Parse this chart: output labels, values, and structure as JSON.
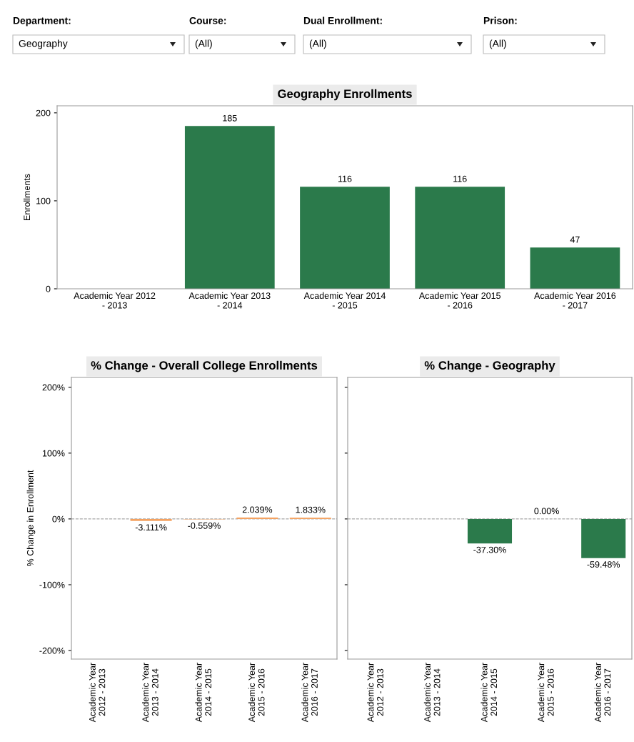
{
  "chart_data": [
    {
      "type": "bar",
      "title": "Geography Enrollments",
      "ylabel": "Enrollments",
      "annotations": [
        "Department:",
        "Geography",
        "Course:",
        "(All)",
        "Dual Enrollment:",
        "(All)",
        "Prison:",
        "(All)"
      ],
      "categories": [
        "Academic Year 2012 - 2013",
        "Academic Year 2013 - 2014",
        "Academic Year 2014 - 2015",
        "Academic Year 2015 - 2016",
        "Academic Year 2016 - 2017"
      ],
      "values": [
        null,
        185,
        116,
        116,
        47
      ],
      "color": "#2b7a4b",
      "data_labels": true,
      "ylim": [
        0,
        208
      ],
      "yticks": [
        0,
        100,
        200
      ],
      "grid": false
    },
    {
      "type": "bar",
      "title": "% Change - Overall College Enrollments",
      "ylabel": "% Change in Enrollment",
      "categories": [
        "Academic Year 2012 - 2013",
        "Academic Year 2013 - 2014",
        "Academic Year 2014 - 2015",
        "Academic Year 2015 - 2016",
        "Academic Year 2016 - 2017"
      ],
      "values": [
        null,
        -3.111,
        -0.559,
        2.039,
        1.833
      ],
      "color": "#f4a261",
      "value_labels": [
        null,
        "-3.111%",
        "-0.559%",
        "2.039%",
        "1.833%"
      ],
      "ylim": [
        -213,
        215
      ],
      "yticks": [
        {
          "value": -200,
          "label": "-200%"
        },
        {
          "value": -100,
          "label": "-100%"
        },
        {
          "value": 0,
          "label": "0%"
        },
        {
          "value": 100,
          "label": "100%"
        },
        {
          "value": 200,
          "label": "200%"
        }
      ],
      "ref_lines": [
        {
          "axis": "y",
          "value": 0,
          "color": "#aaaaaa",
          "line_style": "dashed"
        }
      ],
      "grid": false
    },
    {
      "type": "bar",
      "title": "% Change - Geography",
      "categories": [
        "Academic Year 2012 - 2013",
        "Academic Year 2013 - 2014",
        "Academic Year 2014 - 2015",
        "Academic Year 2015 - 2016",
        "Academic Year 2016 - 2017"
      ],
      "values": [
        null,
        null,
        -37.3,
        0.0,
        -59.48
      ],
      "color": "#2b7a4b",
      "value_labels": [
        null,
        null,
        "-37.30%",
        "0.00%",
        "-59.48%"
      ],
      "ylim": [
        -213,
        215
      ],
      "yticks": [
        {
          "value": -200,
          "label": null
        },
        {
          "value": -100,
          "label": null
        },
        {
          "value": 0,
          "label": null
        },
        {
          "value": 100,
          "label": null
        },
        {
          "value": 200,
          "label": null
        }
      ],
      "tick_labels": "x",
      "ref_lines": [
        {
          "axis": "y",
          "value": 0,
          "color": "#aaaaaa",
          "line_style": "dashed"
        }
      ],
      "grid": false
    }
  ]
}
